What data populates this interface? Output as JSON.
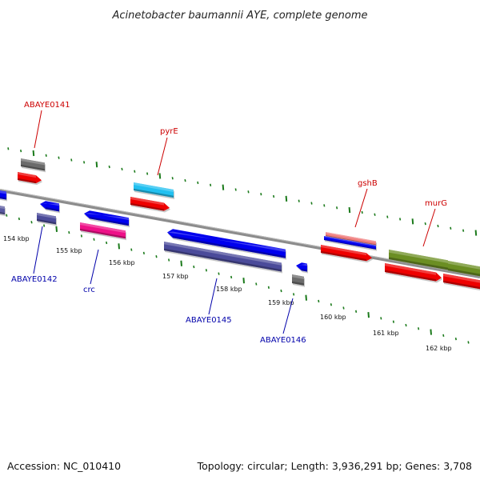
{
  "title": "Acinetobacter baumannii AYE, complete genome",
  "footer": {
    "accession": "Accession: NC_010410",
    "summary": "Topology: circular; Length: 3,936,291 bp; Genes: 3,708"
  },
  "colors": {
    "backbone": "#8c8c8c",
    "tick_forward": "#1b7a1b",
    "tick_reverse": "#1b7a1b",
    "label_forward": "#cc0000",
    "label_reverse": "#0000aa"
  },
  "kbp_labels": [
    "154 kbp",
    "155 kbp",
    "156 kbp",
    "157 kbp",
    "158 kbp",
    "159 kbp",
    "160 kbp",
    "161 kbp",
    "162 kbp"
  ],
  "genes_forward": [
    {
      "name": "ABAYE0141",
      "color": "#cc0000"
    },
    {
      "name": "pyrE",
      "color": "#cc0000"
    },
    {
      "name": "gshB",
      "color": "#cc0000"
    },
    {
      "name": "murG",
      "color": "#cc0000"
    }
  ],
  "genes_reverse": [
    {
      "name": "ABAYE0142",
      "color": "#0000aa"
    },
    {
      "name": "crc",
      "color": "#0000aa"
    },
    {
      "name": "ABAYE0145",
      "color": "#0000aa"
    },
    {
      "name": "ABAYE0146",
      "color": "#0000aa"
    }
  ]
}
